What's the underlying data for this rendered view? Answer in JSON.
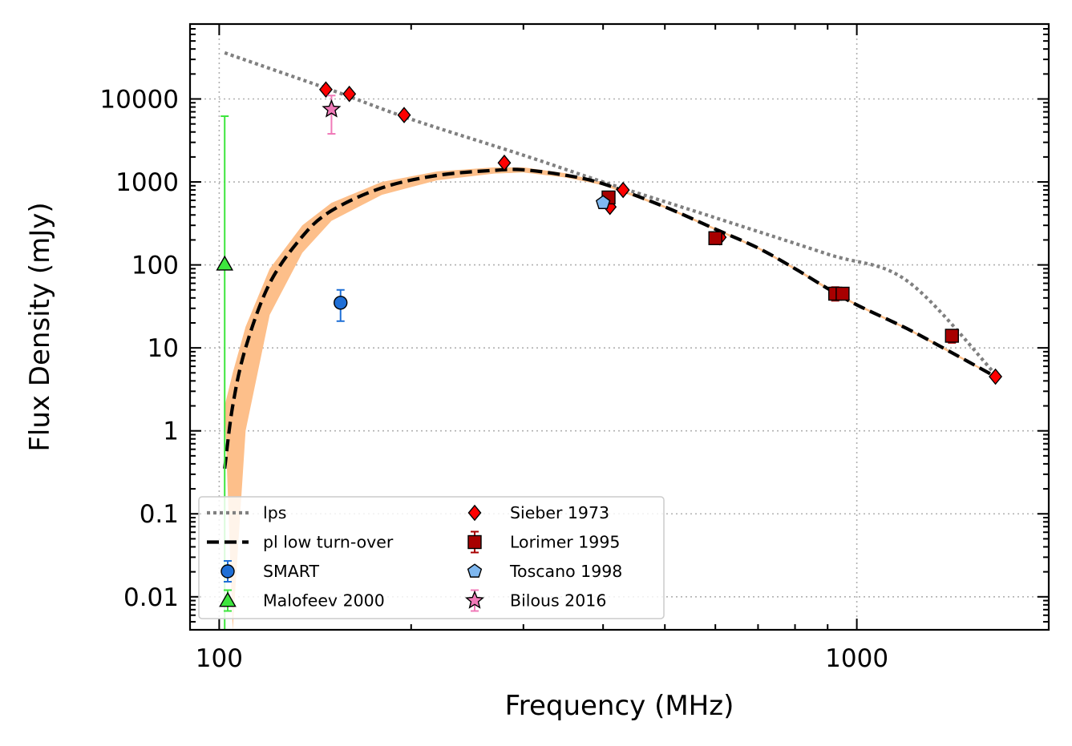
{
  "chart_data": {
    "type": "scatter",
    "xlabel": "Frequency (MHz)",
    "ylabel": "Flux Density (mJy)",
    "x_scale": "log",
    "y_scale": "log",
    "xlim": [
      90,
      2000
    ],
    "ylim": [
      0.004,
      80000
    ],
    "x_ticks": [
      100,
      1000
    ],
    "x_tick_labels": [
      "100",
      "1000"
    ],
    "y_ticks": [
      0.01,
      0.1,
      1,
      10,
      100,
      1000,
      10000
    ],
    "y_tick_labels": [
      "0.01",
      "0.1",
      "1",
      "10",
      "100",
      "1000",
      "10000"
    ],
    "grid": true,
    "legend_placement": "lower-left",
    "models": [
      {
        "name": "lps",
        "style": "dotted",
        "color": "#808080",
        "points": [
          [
            102,
            36000
          ],
          [
            150,
            12800
          ],
          [
            200,
            5700
          ],
          [
            300,
            2100
          ],
          [
            400,
            1000
          ],
          [
            600,
            370
          ],
          [
            900,
            135
          ],
          [
            1200,
            64
          ],
          [
            1650,
            4.8
          ]
        ]
      },
      {
        "name": "pl low turn-over",
        "style": "dashed",
        "color": "#000000",
        "band_color": "#fdbf8a",
        "points": [
          [
            102,
            0.35
          ],
          [
            105,
            2
          ],
          [
            110,
            10
          ],
          [
            120,
            60
          ],
          [
            135,
            220
          ],
          [
            150,
            450
          ],
          [
            180,
            850
          ],
          [
            220,
            1200
          ],
          [
            270,
            1380
          ],
          [
            300,
            1400
          ],
          [
            350,
            1200
          ],
          [
            400,
            950
          ],
          [
            500,
            500
          ],
          [
            600,
            270
          ],
          [
            700,
            160
          ],
          [
            800,
            90
          ],
          [
            900,
            52
          ],
          [
            1000,
            33
          ],
          [
            1200,
            17
          ],
          [
            1400,
            9
          ],
          [
            1650,
            4.5
          ]
        ],
        "band_upper": [
          [
            102,
            2
          ],
          [
            105,
            5
          ],
          [
            110,
            18
          ],
          [
            120,
            90
          ],
          [
            135,
            300
          ],
          [
            150,
            560
          ],
          [
            180,
            1000
          ],
          [
            220,
            1340
          ],
          [
            270,
            1500
          ],
          [
            300,
            1500
          ],
          [
            350,
            1270
          ],
          [
            400,
            990
          ],
          [
            500,
            515
          ],
          [
            600,
            278
          ],
          [
            700,
            165
          ],
          [
            800,
            93
          ],
          [
            900,
            54
          ],
          [
            1000,
            34
          ],
          [
            1200,
            17.5
          ],
          [
            1400,
            9.3
          ],
          [
            1650,
            4.6
          ]
        ],
        "band_lower": [
          [
            105,
            0.004
          ],
          [
            110,
            1.0
          ],
          [
            120,
            25
          ],
          [
            135,
            140
          ],
          [
            150,
            340
          ],
          [
            180,
            700
          ],
          [
            220,
            1050
          ],
          [
            270,
            1260
          ],
          [
            300,
            1300
          ],
          [
            350,
            1130
          ],
          [
            400,
            910
          ],
          [
            500,
            485
          ],
          [
            600,
            262
          ],
          [
            700,
            155
          ],
          [
            800,
            87
          ],
          [
            900,
            50
          ],
          [
            1000,
            32
          ],
          [
            1200,
            16.5
          ],
          [
            1400,
            8.7
          ],
          [
            1650,
            4.4
          ]
        ]
      }
    ],
    "series": [
      {
        "name": "SMART",
        "marker": "circle",
        "color": "#1f6fd6",
        "points": [
          {
            "x": 155,
            "y": 35,
            "ylow": 21,
            "yhigh": 50
          }
        ]
      },
      {
        "name": "Malofeev 2000",
        "marker": "triangle",
        "color": "#3de53d",
        "points": [
          {
            "x": 102,
            "y": 102,
            "ylow": 0.004,
            "yhigh": 6200
          }
        ]
      },
      {
        "name": "Sieber 1973",
        "marker": "diamond",
        "color": "#ff0000",
        "points": [
          {
            "x": 147,
            "y": 13000
          },
          {
            "x": 160,
            "y": 11500
          },
          {
            "x": 195,
            "y": 6400
          },
          {
            "x": 280,
            "y": 1700
          },
          {
            "x": 410,
            "y": 500
          },
          {
            "x": 430,
            "y": 800
          },
          {
            "x": 610,
            "y": 215
          },
          {
            "x": 1650,
            "y": 4.5
          }
        ]
      },
      {
        "name": "Lorimer 1995",
        "marker": "square",
        "color": "#a80000",
        "points": [
          {
            "x": 408,
            "y": 650,
            "ylow": 590,
            "yhigh": 710
          },
          {
            "x": 600,
            "y": 210,
            "ylow": 190,
            "yhigh": 230
          },
          {
            "x": 925,
            "y": 45,
            "ylow": 37,
            "yhigh": 54
          },
          {
            "x": 950,
            "y": 45,
            "ylow": 38,
            "yhigh": 53
          },
          {
            "x": 1410,
            "y": 14,
            "ylow": 11.5,
            "yhigh": 16.5
          }
        ]
      },
      {
        "name": "Toscano 1998",
        "marker": "pentagon",
        "color": "#7fb8f0",
        "points": [
          {
            "x": 400,
            "y": 560
          }
        ]
      },
      {
        "name": "Bilous 2016",
        "marker": "star",
        "color": "#f07ab8",
        "points": [
          {
            "x": 150,
            "y": 7500,
            "ylow": 3800,
            "yhigh": 11000
          }
        ]
      }
    ]
  }
}
